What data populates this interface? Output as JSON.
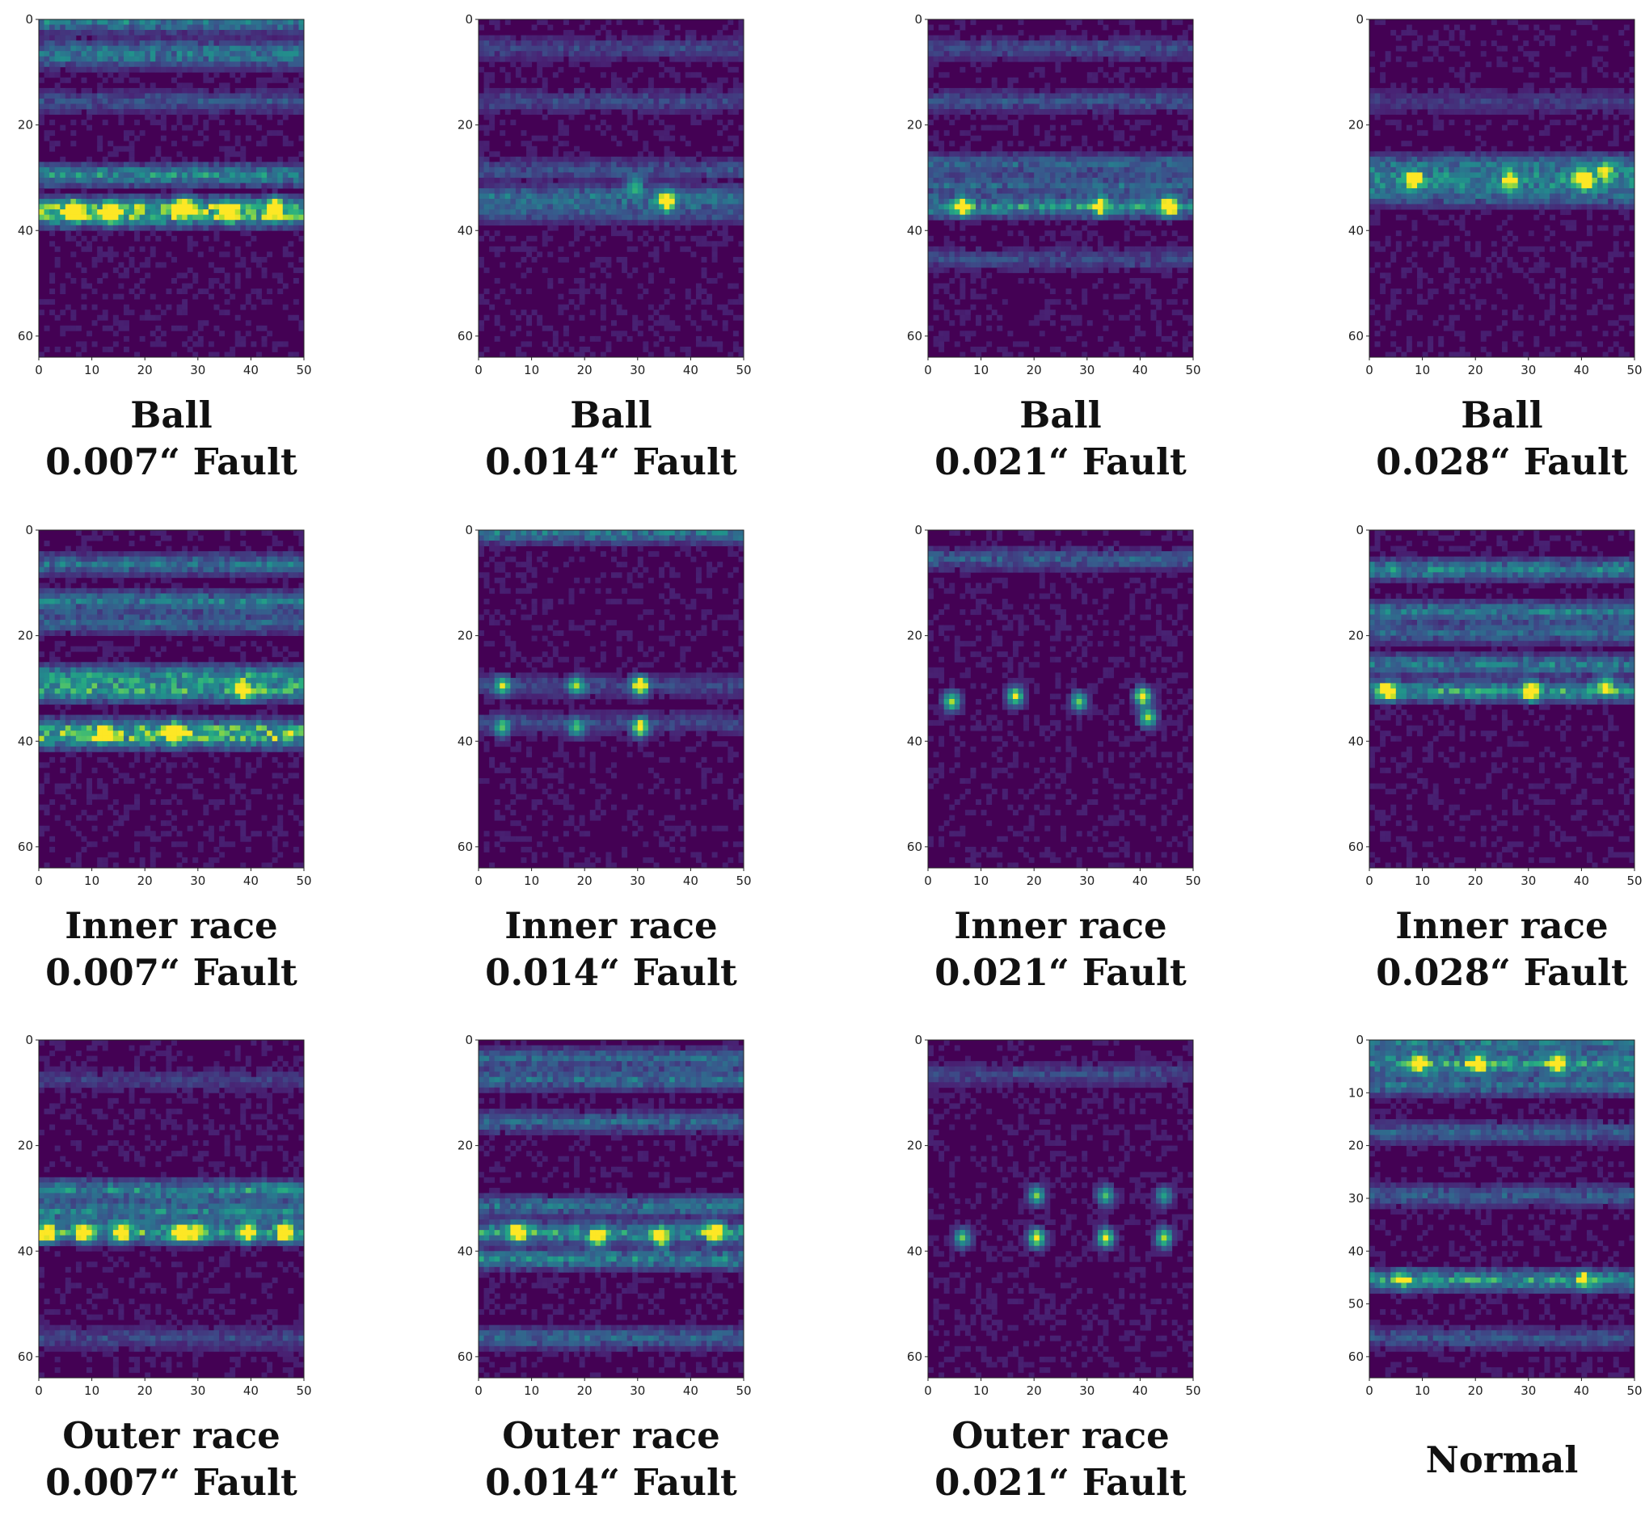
{
  "figure": {
    "colormap": "viridis",
    "colors": {
      "low": "#440154",
      "mid": "#21918c",
      "high": "#fde725",
      "axis": "#222222"
    }
  },
  "chart_data": [
    {
      "type": "heatmap",
      "caption": [
        "Ball",
        "0.007“ Fault"
      ],
      "x_range": [
        0,
        50
      ],
      "y_range": [
        0,
        64
      ],
      "y_inverted": true,
      "x_ticks": [
        0,
        10,
        20,
        30,
        40,
        50
      ],
      "y_ticks": [
        0,
        20,
        40,
        60
      ],
      "bands": [
        {
          "row": 0,
          "intensity": 0.45
        },
        {
          "row": 5,
          "intensity": 0.3
        },
        {
          "row": 7,
          "intensity": 0.3
        },
        {
          "row": 15,
          "intensity": 0.25
        },
        {
          "row": 29,
          "intensity": 0.55
        },
        {
          "row": 35,
          "intensity": 0.6
        },
        {
          "row": 37,
          "intensity": 0.6
        }
      ],
      "hotspots": [
        {
          "x": 6,
          "y": 36,
          "intensity": 0.95
        },
        {
          "x": 13,
          "y": 36,
          "intensity": 0.95
        },
        {
          "x": 27,
          "y": 35,
          "intensity": 1.0
        },
        {
          "x": 35,
          "y": 36,
          "intensity": 0.85
        },
        {
          "x": 44,
          "y": 35,
          "intensity": 0.8
        }
      ]
    },
    {
      "type": "heatmap",
      "caption": [
        "Ball",
        "0.014“ Fault"
      ],
      "x_range": [
        0,
        50
      ],
      "y_range": [
        0,
        64
      ],
      "y_inverted": true,
      "x_ticks": [
        0,
        10,
        20,
        30,
        40,
        50
      ],
      "y_ticks": [
        0,
        20,
        40,
        60
      ],
      "bands": [
        {
          "row": 5,
          "intensity": 0.2
        },
        {
          "row": 15,
          "intensity": 0.2
        },
        {
          "row": 28,
          "intensity": 0.25
        },
        {
          "row": 33,
          "intensity": 0.4
        },
        {
          "row": 36,
          "intensity": 0.3
        }
      ],
      "hotspots": [
        {
          "x": 35,
          "y": 34,
          "intensity": 1.0
        },
        {
          "x": 29,
          "y": 31,
          "intensity": 0.55
        }
      ]
    },
    {
      "type": "heatmap",
      "caption": [
        "Ball",
        "0.021“ Fault"
      ],
      "x_range": [
        0,
        50
      ],
      "y_range": [
        0,
        64
      ],
      "y_inverted": true,
      "x_ticks": [
        0,
        10,
        20,
        30,
        40,
        50
      ],
      "y_ticks": [
        0,
        20,
        40,
        60
      ],
      "bands": [
        {
          "row": 5,
          "intensity": 0.22
        },
        {
          "row": 15,
          "intensity": 0.25
        },
        {
          "row": 27,
          "intensity": 0.35
        },
        {
          "row": 31,
          "intensity": 0.35
        },
        {
          "row": 35,
          "intensity": 0.55
        },
        {
          "row": 45,
          "intensity": 0.2
        }
      ],
      "hotspots": [
        {
          "x": 6,
          "y": 35,
          "intensity": 0.75
        },
        {
          "x": 32,
          "y": 35,
          "intensity": 0.7
        },
        {
          "x": 45,
          "y": 35,
          "intensity": 0.95
        }
      ]
    },
    {
      "type": "heatmap",
      "caption": [
        "Ball",
        "0.028“ Fault"
      ],
      "x_range": [
        0,
        50
      ],
      "y_range": [
        0,
        64
      ],
      "y_inverted": true,
      "x_ticks": [
        0,
        10,
        20,
        30,
        40,
        50
      ],
      "y_ticks": [
        0,
        20,
        40,
        60
      ],
      "bands": [
        {
          "row": 15,
          "intensity": 0.15
        },
        {
          "row": 27,
          "intensity": 0.4
        },
        {
          "row": 30,
          "intensity": 0.55
        },
        {
          "row": 33,
          "intensity": 0.35
        }
      ],
      "hotspots": [
        {
          "x": 8,
          "y": 30,
          "intensity": 0.95
        },
        {
          "x": 26,
          "y": 30,
          "intensity": 0.8
        },
        {
          "x": 40,
          "y": 30,
          "intensity": 1.0
        },
        {
          "x": 44,
          "y": 28,
          "intensity": 0.6
        }
      ]
    },
    {
      "type": "heatmap",
      "caption": [
        "Inner race",
        "0.007“ Fault"
      ],
      "x_range": [
        0,
        50
      ],
      "y_range": [
        0,
        64
      ],
      "y_inverted": true,
      "x_ticks": [
        0,
        10,
        20,
        30,
        40,
        50
      ],
      "y_ticks": [
        0,
        20,
        40,
        60
      ],
      "bands": [
        {
          "row": 6,
          "intensity": 0.4
        },
        {
          "row": 13,
          "intensity": 0.45
        },
        {
          "row": 17,
          "intensity": 0.35
        },
        {
          "row": 27,
          "intensity": 0.55
        },
        {
          "row": 30,
          "intensity": 0.65
        },
        {
          "row": 37,
          "intensity": 0.5
        },
        {
          "row": 39,
          "intensity": 0.6
        }
      ],
      "hotspots": [
        {
          "x": 12,
          "y": 38,
          "intensity": 0.7
        },
        {
          "x": 25,
          "y": 38,
          "intensity": 0.95
        },
        {
          "x": 38,
          "y": 30,
          "intensity": 0.6
        }
      ]
    },
    {
      "type": "heatmap",
      "caption": [
        "Inner race",
        "0.014“ Fault"
      ],
      "x_range": [
        0,
        50
      ],
      "y_range": [
        0,
        64
      ],
      "y_inverted": true,
      "x_ticks": [
        0,
        10,
        20,
        30,
        40,
        50
      ],
      "y_ticks": [
        0,
        20,
        40,
        60
      ],
      "bands": [
        {
          "row": 0,
          "intensity": 0.45
        },
        {
          "row": 29,
          "intensity": 0.2
        },
        {
          "row": 36,
          "intensity": 0.2
        }
      ],
      "hotspots": [
        {
          "x": 4,
          "y": 29,
          "intensity": 0.65
        },
        {
          "x": 4,
          "y": 37,
          "intensity": 0.6
        },
        {
          "x": 18,
          "y": 29,
          "intensity": 0.65
        },
        {
          "x": 18,
          "y": 37,
          "intensity": 0.6
        },
        {
          "x": 30,
          "y": 29,
          "intensity": 1.0
        },
        {
          "x": 30,
          "y": 37,
          "intensity": 0.9
        }
      ]
    },
    {
      "type": "heatmap",
      "caption": [
        "Inner race",
        "0.021“ Fault"
      ],
      "x_range": [
        0,
        50
      ],
      "y_range": [
        0,
        64
      ],
      "y_inverted": true,
      "x_ticks": [
        0,
        10,
        20,
        30,
        40,
        50
      ],
      "y_ticks": [
        0,
        20,
        40,
        60
      ],
      "bands": [
        {
          "row": 5,
          "intensity": 0.3
        }
      ],
      "hotspots": [
        {
          "x": 4,
          "y": 32,
          "intensity": 0.85
        },
        {
          "x": 16,
          "y": 31,
          "intensity": 0.9
        },
        {
          "x": 28,
          "y": 32,
          "intensity": 0.75
        },
        {
          "x": 40,
          "y": 31,
          "intensity": 1.0
        },
        {
          "x": 41,
          "y": 35,
          "intensity": 0.85
        }
      ]
    },
    {
      "type": "heatmap",
      "caption": [
        "Inner race",
        "0.028“ Fault"
      ],
      "x_range": [
        0,
        50
      ],
      "y_range": [
        0,
        64
      ],
      "y_inverted": true,
      "x_ticks": [
        0,
        10,
        20,
        30,
        40,
        50
      ],
      "y_ticks": [
        0,
        20,
        40,
        60
      ],
      "bands": [
        {
          "row": 7,
          "intensity": 0.5
        },
        {
          "row": 15,
          "intensity": 0.45
        },
        {
          "row": 19,
          "intensity": 0.35
        },
        {
          "row": 25,
          "intensity": 0.45
        },
        {
          "row": 30,
          "intensity": 0.6
        }
      ],
      "hotspots": [
        {
          "x": 3,
          "y": 30,
          "intensity": 0.85
        },
        {
          "x": 30,
          "y": 30,
          "intensity": 1.0
        },
        {
          "x": 44,
          "y": 29,
          "intensity": 0.75
        }
      ]
    },
    {
      "type": "heatmap",
      "caption": [
        "Outer race",
        "0.007“ Fault"
      ],
      "x_range": [
        0,
        50
      ],
      "y_range": [
        0,
        64
      ],
      "y_inverted": true,
      "x_ticks": [
        0,
        10,
        20,
        30,
        40,
        50
      ],
      "y_ticks": [
        0,
        20,
        40,
        60
      ],
      "bands": [
        {
          "row": 7,
          "intensity": 0.15
        },
        {
          "row": 28,
          "intensity": 0.55
        },
        {
          "row": 32,
          "intensity": 0.5
        },
        {
          "row": 36,
          "intensity": 0.65
        },
        {
          "row": 56,
          "intensity": 0.2
        }
      ],
      "hotspots": [
        {
          "x": 1,
          "y": 36,
          "intensity": 0.95
        },
        {
          "x": 8,
          "y": 36,
          "intensity": 0.9
        },
        {
          "x": 15,
          "y": 36,
          "intensity": 0.95
        },
        {
          "x": 26,
          "y": 36,
          "intensity": 0.9
        },
        {
          "x": 29,
          "y": 36,
          "intensity": 0.85
        },
        {
          "x": 39,
          "y": 36,
          "intensity": 0.95
        },
        {
          "x": 46,
          "y": 36,
          "intensity": 0.85
        }
      ]
    },
    {
      "type": "heatmap",
      "caption": [
        "Outer race",
        "0.014“ Fault"
      ],
      "x_range": [
        0,
        50
      ],
      "y_range": [
        0,
        64
      ],
      "y_inverted": true,
      "x_ticks": [
        0,
        10,
        20,
        30,
        40,
        50
      ],
      "y_ticks": [
        0,
        20,
        40,
        60
      ],
      "bands": [
        {
          "row": 3,
          "intensity": 0.35
        },
        {
          "row": 7,
          "intensity": 0.4
        },
        {
          "row": 15,
          "intensity": 0.35
        },
        {
          "row": 31,
          "intensity": 0.4
        },
        {
          "row": 36,
          "intensity": 0.6
        },
        {
          "row": 41,
          "intensity": 0.5
        },
        {
          "row": 56,
          "intensity": 0.35
        }
      ],
      "hotspots": [
        {
          "x": 7,
          "y": 36,
          "intensity": 0.95
        },
        {
          "x": 22,
          "y": 37,
          "intensity": 0.9
        },
        {
          "x": 34,
          "y": 37,
          "intensity": 0.95
        },
        {
          "x": 44,
          "y": 36,
          "intensity": 1.0
        }
      ]
    },
    {
      "type": "heatmap",
      "caption": [
        "Outer race",
        "0.021“ Fault"
      ],
      "x_range": [
        0,
        50
      ],
      "y_range": [
        0,
        64
      ],
      "y_inverted": true,
      "x_ticks": [
        0,
        10,
        20,
        30,
        40,
        50
      ],
      "y_ticks": [
        0,
        20,
        40,
        60
      ],
      "bands": [
        {
          "row": 6,
          "intensity": 0.2
        }
      ],
      "hotspots": [
        {
          "x": 6,
          "y": 37,
          "intensity": 0.7
        },
        {
          "x": 20,
          "y": 29,
          "intensity": 0.75
        },
        {
          "x": 20,
          "y": 37,
          "intensity": 1.0
        },
        {
          "x": 33,
          "y": 29,
          "intensity": 0.7
        },
        {
          "x": 33,
          "y": 37,
          "intensity": 0.95
        },
        {
          "x": 44,
          "y": 29,
          "intensity": 0.55
        },
        {
          "x": 44,
          "y": 37,
          "intensity": 0.85
        }
      ]
    },
    {
      "type": "heatmap",
      "caption": [
        "Normal"
      ],
      "x_range": [
        0,
        50
      ],
      "y_range": [
        0,
        64
      ],
      "y_inverted": true,
      "x_ticks": [
        0,
        10,
        20,
        30,
        40,
        50
      ],
      "y_ticks": [
        0,
        10,
        20,
        30,
        40,
        50,
        60
      ],
      "bands": [
        {
          "row": 0,
          "intensity": 0.45
        },
        {
          "row": 4,
          "intensity": 0.65
        },
        {
          "row": 8,
          "intensity": 0.4
        },
        {
          "row": 17,
          "intensity": 0.3
        },
        {
          "row": 29,
          "intensity": 0.3
        },
        {
          "row": 45,
          "intensity": 0.6
        },
        {
          "row": 56,
          "intensity": 0.25
        }
      ],
      "hotspots": [
        {
          "x": 9,
          "y": 4,
          "intensity": 0.85
        },
        {
          "x": 20,
          "y": 4,
          "intensity": 0.8
        },
        {
          "x": 35,
          "y": 4,
          "intensity": 1.0
        },
        {
          "x": 6,
          "y": 45,
          "intensity": 0.5
        },
        {
          "x": 40,
          "y": 45,
          "intensity": 0.55
        }
      ]
    }
  ]
}
